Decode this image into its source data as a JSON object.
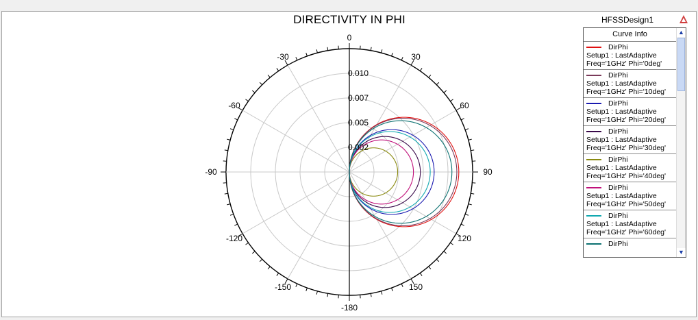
{
  "chart_data": {
    "type": "polar",
    "title": "DIRECTIVITY IN PHI",
    "design": "HFSSDesign1",
    "angle_ticks": [
      "0",
      "30",
      "60",
      "90",
      "120",
      "150",
      "-180",
      "-150",
      "-120",
      "-90",
      "-60",
      "-30"
    ],
    "radial_ticks": [
      "0.010",
      "0.007",
      "0.005",
      "0.002"
    ],
    "rlim": [
      0,
      0.0125
    ],
    "grid": true,
    "legend_placement": "right",
    "legend_title": "Curve Info",
    "series": [
      {
        "name": "DirPhi",
        "setup": "Setup1 : LastAdaptive",
        "freq": "Freq='1GHz' Phi='0deg'",
        "color": "#e01010",
        "peak": 0.0111
      },
      {
        "name": "DirPhi",
        "setup": "Setup1 : LastAdaptive",
        "freq": "Freq='1GHz' Phi='10deg'",
        "color": "#7a3a5a",
        "peak": 0.0109
      },
      {
        "name": "DirPhi",
        "setup": "Setup1 : LastAdaptive",
        "freq": "Freq='1GHz' Phi='20deg'",
        "color": "#1a1ab0",
        "peak": 0.0086
      },
      {
        "name": "DirPhi",
        "setup": "Setup1 : LastAdaptive",
        "freq": "Freq='1GHz' Phi='30deg'",
        "color": "#3a0a4a",
        "peak": 0.0072
      },
      {
        "name": "DirPhi",
        "setup": "Setup1 : LastAdaptive",
        "freq": "Freq='1GHz' Phi='40deg'",
        "color": "#8a8a10",
        "peak": 0.0049
      },
      {
        "name": "DirPhi",
        "setup": "Setup1 : LastAdaptive",
        "freq": "Freq='1GHz' Phi='50deg'",
        "color": "#c0107a",
        "peak": 0.0065
      },
      {
        "name": "DirPhi",
        "setup": "Setup1 : LastAdaptive",
        "freq": "Freq='1GHz' Phi='60deg'",
        "color": "#10a8b0",
        "peak": 0.0082
      },
      {
        "name": "DirPhi",
        "setup": "",
        "freq": "",
        "color": "#0a7070",
        "peak": 0.0104
      }
    ]
  },
  "ui": {
    "scroll_up": "▲",
    "scroll_down": "▼"
  }
}
